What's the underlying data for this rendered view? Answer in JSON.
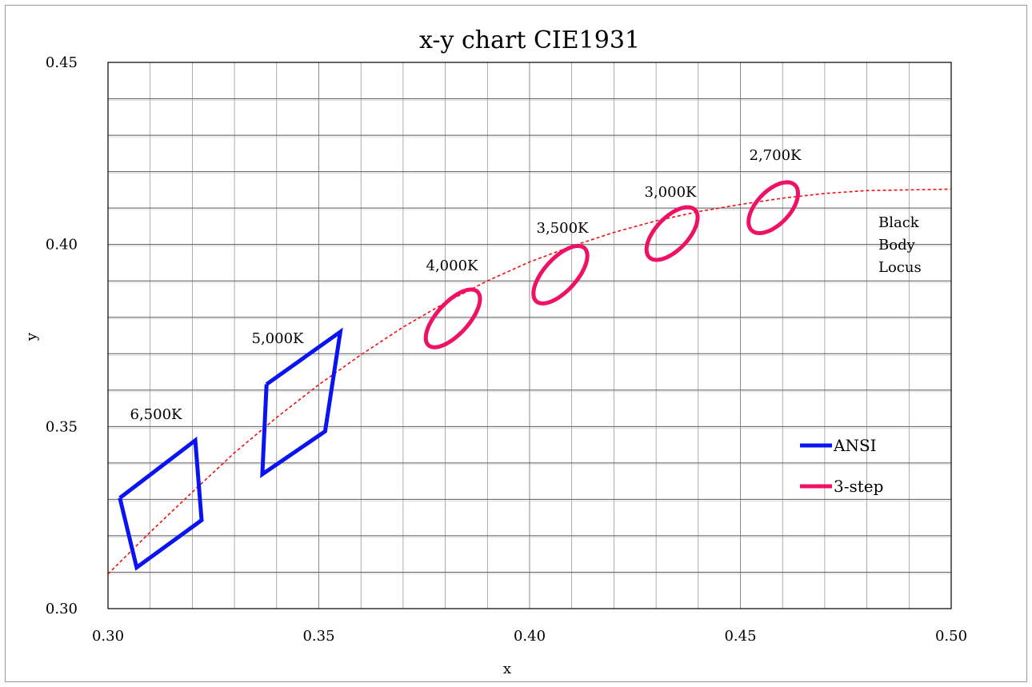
{
  "chart_data": {
    "type": "scatter",
    "title": "x-y chart CIE1931",
    "xlabel": "x",
    "ylabel": "y",
    "xlim": [
      0.3,
      0.5
    ],
    "ylim": [
      0.3,
      0.45
    ],
    "x_ticks": [
      "0.30",
      "0.35",
      "0.40",
      "0.45",
      "0.50"
    ],
    "y_ticks": [
      "0.30",
      "0.35",
      "0.40",
      "0.45"
    ],
    "x_ticks_values": [
      0.3,
      0.35,
      0.4,
      0.45,
      0.5
    ],
    "y_ticks_values": [
      0.3,
      0.35,
      0.4,
      0.45
    ],
    "grid": true,
    "legend_position": "lower-right",
    "colors": {
      "ansi": "#0a14f0",
      "three_step": "#ee1166",
      "locus": "#ee1111"
    },
    "series": [
      {
        "name": "ANSI",
        "kind": "quadrangles",
        "shapes": [
          {
            "label": "6,500K",
            "points": [
              [
                0.3028,
                0.3304
              ],
              [
                0.3207,
                0.3462
              ],
              [
                0.3222,
                0.3243
              ],
              [
                0.3068,
                0.3113
              ],
              [
                0.3028,
                0.3304
              ]
            ]
          },
          {
            "label": "5,000K",
            "points": [
              [
                0.3376,
                0.3616
              ],
              [
                0.3551,
                0.376
              ],
              [
                0.3515,
                0.3487
              ],
              [
                0.3366,
                0.3369
              ],
              [
                0.3376,
                0.3616
              ]
            ]
          }
        ]
      },
      {
        "name": "3-step",
        "kind": "ellipses",
        "shapes": [
          {
            "label": "4,000K",
            "center": [
              0.3818,
              0.3797
            ],
            "a": 0.0094,
            "b": 0.004,
            "angle_deg": 53.7
          },
          {
            "label": "3,500K",
            "center": [
              0.4073,
              0.3917
            ],
            "a": 0.0093,
            "b": 0.0041,
            "angle_deg": 54.0
          },
          {
            "label": "3,000K",
            "center": [
              0.4338,
              0.403
            ],
            "a": 0.0085,
            "b": 0.0041,
            "angle_deg": 53.2
          },
          {
            "label": "2,700K",
            "center": [
              0.4578,
              0.4101
            ],
            "a": 0.0081,
            "b": 0.0042,
            "angle_deg": 53.7
          }
        ]
      },
      {
        "kind": "curve",
        "label": [
          "Black",
          "Body",
          "Locus"
        ],
        "x": [
          0.3,
          0.31,
          0.32,
          0.33,
          0.34,
          0.35,
          0.36,
          0.37,
          0.38,
          0.39,
          0.4,
          0.41,
          0.42,
          0.43,
          0.44,
          0.45,
          0.46,
          0.47,
          0.48,
          0.49,
          0.5
        ],
        "y": [
          0.3095,
          0.321,
          0.332,
          0.3428,
          0.3525,
          0.3615,
          0.3697,
          0.3773,
          0.384,
          0.39,
          0.3952,
          0.3995,
          0.4033,
          0.4065,
          0.409,
          0.411,
          0.4127,
          0.414,
          0.4148,
          0.415,
          0.4152
        ]
      }
    ]
  }
}
